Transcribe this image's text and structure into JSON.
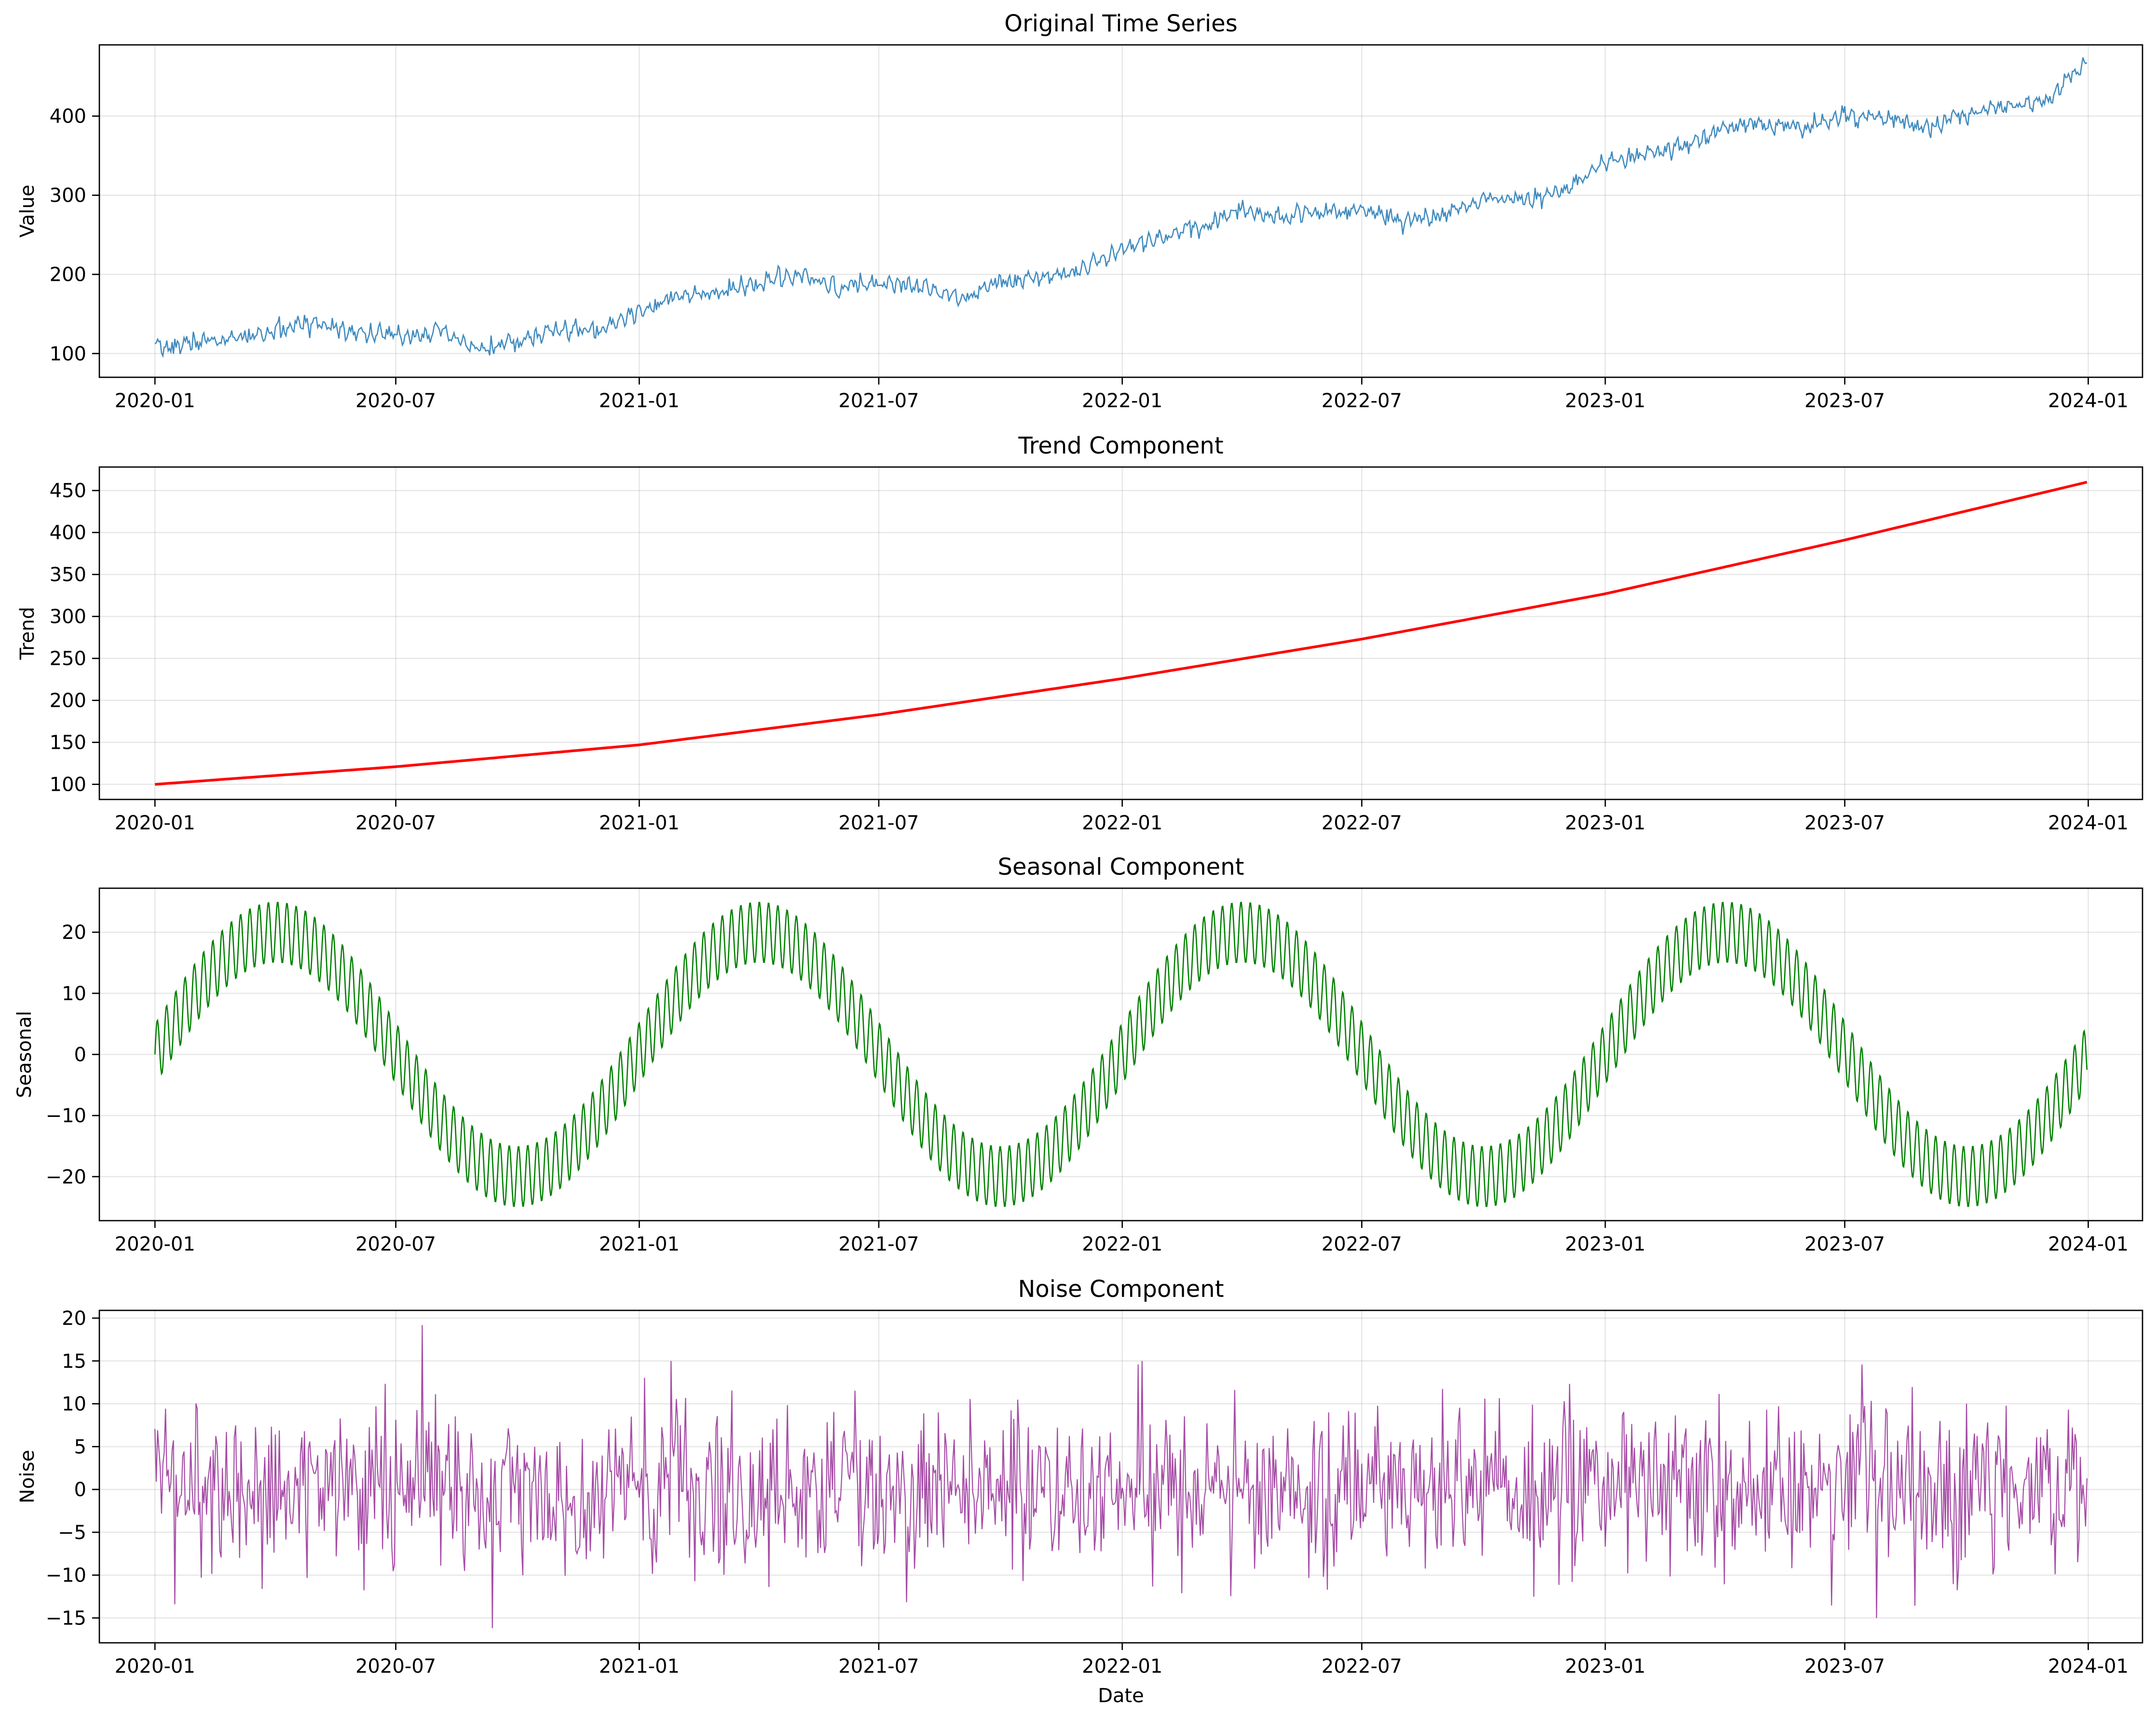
{
  "chart_data": [
    {
      "type": "line",
      "title": "Original Time Series",
      "xlabel": "",
      "ylabel": "Value",
      "x_ticks": [
        "2020-01",
        "2020-07",
        "2021-01",
        "2021-07",
        "2022-01",
        "2022-07",
        "2023-01",
        "2023-07",
        "2024-01"
      ],
      "y_ticks": [
        100,
        200,
        300,
        400
      ],
      "ylim": [
        70,
        490
      ],
      "xlim": [
        "2019-11-20",
        "2024-02-11"
      ],
      "grid": true,
      "color": "#1f77b4",
      "series": [
        {
          "x": [
            "2020-01-01",
            "2020-02-01",
            "2020-03-01",
            "2020-04-01",
            "2020-05-01",
            "2020-06-01",
            "2020-07-01",
            "2020-08-01",
            "2020-09-01",
            "2020-10-01",
            "2020-11-01",
            "2020-12-01",
            "2021-01-01",
            "2021-02-01",
            "2021-03-01",
            "2021-04-01",
            "2021-05-01",
            "2021-06-01",
            "2021-07-01",
            "2021-08-01",
            "2021-09-01",
            "2021-10-01",
            "2021-11-01",
            "2021-12-01",
            "2022-01-01",
            "2022-02-01",
            "2022-03-01",
            "2022-04-01",
            "2022-05-01",
            "2022-06-01",
            "2022-07-01",
            "2022-08-01",
            "2022-09-01",
            "2022-10-01",
            "2022-11-01",
            "2022-12-01",
            "2023-01-01",
            "2023-02-01",
            "2023-03-01",
            "2023-04-01",
            "2023-05-01",
            "2023-06-01",
            "2023-07-01",
            "2023-08-01",
            "2023-09-01",
            "2023-10-01",
            "2023-11-01",
            "2023-12-01",
            "2023-12-31"
          ],
          "values": [
            105,
            115,
            118,
            128,
            140,
            128,
            122,
            128,
            105,
            115,
            130,
            128,
            155,
            172,
            175,
            190,
            198,
            182,
            190,
            185,
            172,
            190,
            198,
            205,
            235,
            248,
            260,
            282,
            272,
            280,
            282,
            268,
            275,
            295,
            295,
            305,
            340,
            352,
            360,
            385,
            392,
            385,
            400,
            398,
            385,
            402,
            415,
            420,
            468
          ]
        }
      ]
    },
    {
      "type": "line",
      "title": "Trend Component",
      "xlabel": "",
      "ylabel": "Trend",
      "x_ticks": [
        "2020-01",
        "2020-07",
        "2021-01",
        "2021-07",
        "2022-01",
        "2022-07",
        "2023-01",
        "2023-07",
        "2024-01"
      ],
      "y_ticks": [
        100,
        150,
        200,
        250,
        300,
        350,
        400,
        450
      ],
      "ylim": [
        82,
        478
      ],
      "xlim": [
        "2019-11-20",
        "2024-02-11"
      ],
      "grid": true,
      "color": "#ff0000",
      "series": [
        {
          "x": [
            "2020-01-01",
            "2020-07-01",
            "2021-01-01",
            "2021-07-01",
            "2022-01-01",
            "2022-07-01",
            "2023-01-01",
            "2023-07-01",
            "2023-12-31"
          ],
          "values": [
            100,
            121,
            147,
            183,
            226,
            273,
            327,
            391,
            460
          ]
        }
      ]
    },
    {
      "type": "line",
      "title": "Seasonal Component",
      "xlabel": "",
      "ylabel": "Seasonal",
      "x_ticks": [
        "2020-01",
        "2020-07",
        "2021-01",
        "2021-07",
        "2022-01",
        "2022-07",
        "2023-01",
        "2023-07",
        "2024-01"
      ],
      "y_ticks": [
        -20,
        -10,
        0,
        10,
        20
      ],
      "ylim": [
        -27.2,
        27.2
      ],
      "xlim": [
        "2019-11-20",
        "2024-02-11"
      ],
      "grid": true,
      "color": "#008000",
      "series": [
        {
          "description_of_form": "",
          "annual_amplitude": 20,
          "weekly_amplitude": 5,
          "start": "2020-01-01",
          "end": "2023-12-31"
        }
      ]
    },
    {
      "type": "line",
      "title": "Noise Component",
      "xlabel": "Date",
      "ylabel": "Noise",
      "x_ticks": [
        "2020-01",
        "2020-07",
        "2021-01",
        "2021-07",
        "2022-01",
        "2022-07",
        "2023-01",
        "2023-07",
        "2024-01"
      ],
      "y_ticks": [
        -15,
        -10,
        -5,
        0,
        5,
        10,
        15,
        20
      ],
      "ylim": [
        -17.9,
        20.9
      ],
      "xlim": [
        "2019-11-20",
        "2024-02-11"
      ],
      "grid": true,
      "color": "#800080",
      "series": [
        {
          "std": 5,
          "min": -16.2,
          "max": 19.2,
          "start": "2020-01-01",
          "end": "2023-12-31"
        }
      ]
    }
  ]
}
